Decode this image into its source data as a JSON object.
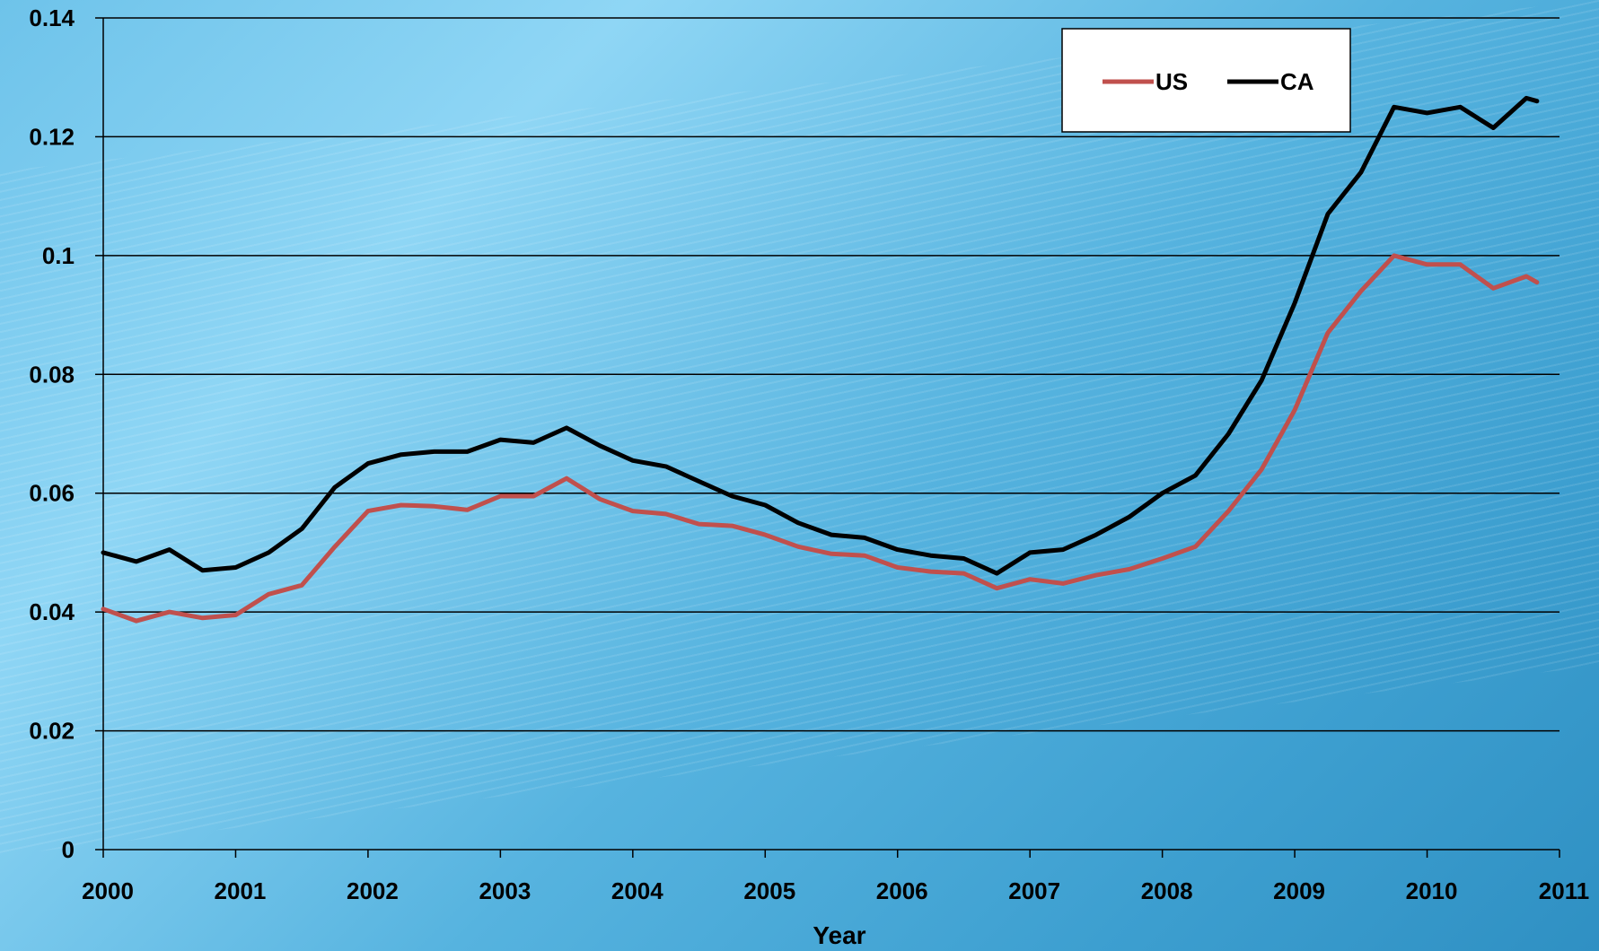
{
  "chart_data": {
    "type": "line",
    "title": "",
    "xlabel": "Year",
    "ylabel": "",
    "xlim": [
      2000,
      2011
    ],
    "ylim": [
      0,
      0.14
    ],
    "x_ticks": [
      "2000",
      "2001",
      "2002",
      "2003",
      "2004",
      "2005",
      "2006",
      "2007",
      "2008",
      "2009",
      "2010",
      "2011"
    ],
    "y_ticks": [
      "0",
      "0.02",
      "0.04",
      "0.06",
      "0.08",
      "0.1",
      "0.12",
      "0.14"
    ],
    "grid": "horizontal",
    "legend_position": "top-right",
    "series": [
      {
        "name": "US",
        "color": "#c0504d",
        "points": [
          [
            2000.0,
            0.0405
          ],
          [
            2000.25,
            0.0385
          ],
          [
            2000.5,
            0.04
          ],
          [
            2000.75,
            0.039
          ],
          [
            2001.0,
            0.0395
          ],
          [
            2001.25,
            0.043
          ],
          [
            2001.5,
            0.0445
          ],
          [
            2001.75,
            0.051
          ],
          [
            2002.0,
            0.057
          ],
          [
            2002.25,
            0.058
          ],
          [
            2002.5,
            0.0578
          ],
          [
            2002.75,
            0.0572
          ],
          [
            2003.0,
            0.0595
          ],
          [
            2003.25,
            0.0595
          ],
          [
            2003.5,
            0.0625
          ],
          [
            2003.75,
            0.059
          ],
          [
            2004.0,
            0.057
          ],
          [
            2004.25,
            0.0565
          ],
          [
            2004.5,
            0.0548
          ],
          [
            2004.75,
            0.0545
          ],
          [
            2005.0,
            0.053
          ],
          [
            2005.25,
            0.051
          ],
          [
            2005.5,
            0.0498
          ],
          [
            2005.75,
            0.0495
          ],
          [
            2006.0,
            0.0475
          ],
          [
            2006.25,
            0.0468
          ],
          [
            2006.5,
            0.0465
          ],
          [
            2006.75,
            0.044
          ],
          [
            2007.0,
            0.0455
          ],
          [
            2007.25,
            0.0448
          ],
          [
            2007.5,
            0.0462
          ],
          [
            2007.75,
            0.0472
          ],
          [
            2008.0,
            0.049
          ],
          [
            2008.25,
            0.051
          ],
          [
            2008.5,
            0.057
          ],
          [
            2008.75,
            0.064
          ],
          [
            2009.0,
            0.074
          ],
          [
            2009.25,
            0.087
          ],
          [
            2009.5,
            0.094
          ],
          [
            2009.75,
            0.1
          ],
          [
            2010.0,
            0.0985
          ],
          [
            2010.25,
            0.0985
          ],
          [
            2010.5,
            0.0945
          ],
          [
            2010.75,
            0.0965
          ],
          [
            2010.83,
            0.0955
          ]
        ]
      },
      {
        "name": "CA",
        "color": "#000000",
        "points": [
          [
            2000.0,
            0.05
          ],
          [
            2000.25,
            0.0485
          ],
          [
            2000.5,
            0.0505
          ],
          [
            2000.75,
            0.047
          ],
          [
            2001.0,
            0.0475
          ],
          [
            2001.25,
            0.05
          ],
          [
            2001.5,
            0.054
          ],
          [
            2001.75,
            0.061
          ],
          [
            2002.0,
            0.065
          ],
          [
            2002.25,
            0.0665
          ],
          [
            2002.5,
            0.067
          ],
          [
            2002.75,
            0.067
          ],
          [
            2003.0,
            0.069
          ],
          [
            2003.25,
            0.0685
          ],
          [
            2003.5,
            0.071
          ],
          [
            2003.75,
            0.068
          ],
          [
            2004.0,
            0.0655
          ],
          [
            2004.25,
            0.0645
          ],
          [
            2004.5,
            0.062
          ],
          [
            2004.75,
            0.0595
          ],
          [
            2005.0,
            0.058
          ],
          [
            2005.25,
            0.055
          ],
          [
            2005.5,
            0.053
          ],
          [
            2005.75,
            0.0525
          ],
          [
            2006.0,
            0.0505
          ],
          [
            2006.25,
            0.0495
          ],
          [
            2006.5,
            0.049
          ],
          [
            2006.75,
            0.0465
          ],
          [
            2007.0,
            0.05
          ],
          [
            2007.25,
            0.0505
          ],
          [
            2007.5,
            0.053
          ],
          [
            2007.75,
            0.056
          ],
          [
            2008.0,
            0.06
          ],
          [
            2008.25,
            0.063
          ],
          [
            2008.5,
            0.07
          ],
          [
            2008.75,
            0.079
          ],
          [
            2009.0,
            0.092
          ],
          [
            2009.25,
            0.107
          ],
          [
            2009.5,
            0.114
          ],
          [
            2009.75,
            0.125
          ],
          [
            2010.0,
            0.124
          ],
          [
            2010.25,
            0.125
          ],
          [
            2010.5,
            0.1215
          ],
          [
            2010.75,
            0.1265
          ],
          [
            2010.83,
            0.126
          ]
        ]
      }
    ]
  }
}
